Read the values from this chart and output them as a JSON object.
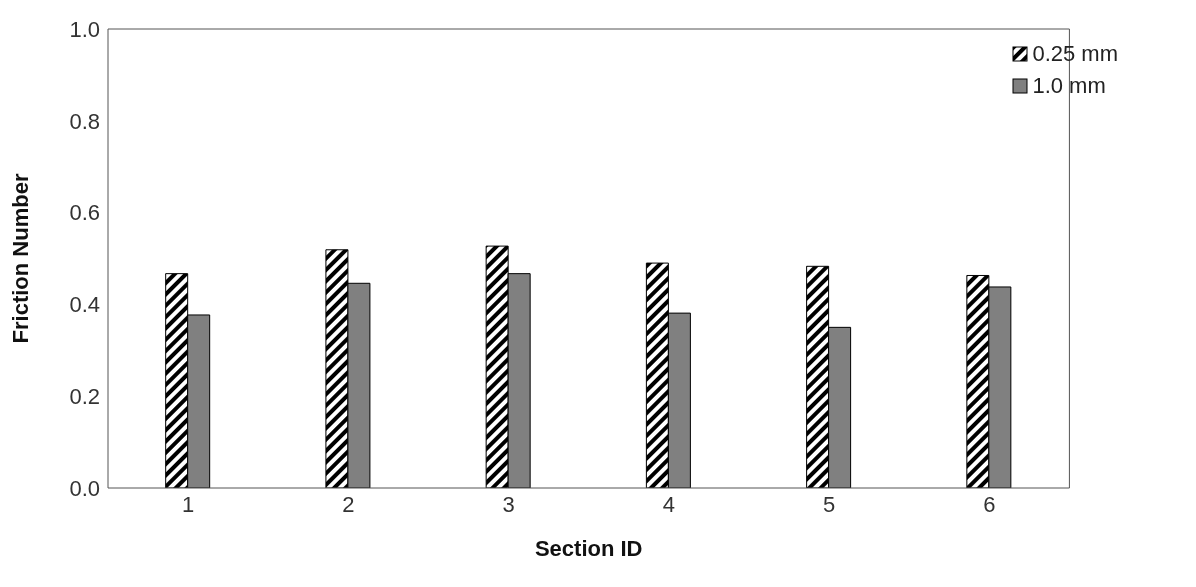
{
  "chart_data": {
    "type": "bar",
    "xlabel": "Section ID",
    "ylabel": "Friction Number",
    "categories": [
      "1",
      "2",
      "3",
      "4",
      "5",
      "6"
    ],
    "series": [
      {
        "name": "0.25 mm",
        "color": "#000000",
        "values": [
          0.467,
          0.519,
          0.527,
          0.49,
          0.483,
          0.463
        ]
      },
      {
        "name": "1.0 mm",
        "color": "#808080",
        "values": [
          0.377,
          0.446,
          0.467,
          0.381,
          0.35,
          0.438
        ]
      }
    ],
    "ylim": [
      0,
      1
    ],
    "yticks": [
      {
        "value": 0,
        "label": "0.0"
      },
      {
        "value": 0.2,
        "label": "0.2"
      },
      {
        "value": 0.4,
        "label": "0.4"
      },
      {
        "value": 0.6,
        "label": "0.6"
      },
      {
        "value": 0.8,
        "label": "0.8"
      },
      {
        "value": 1,
        "label": "1.0"
      }
    ],
    "grid": false,
    "legend": "top right"
  }
}
